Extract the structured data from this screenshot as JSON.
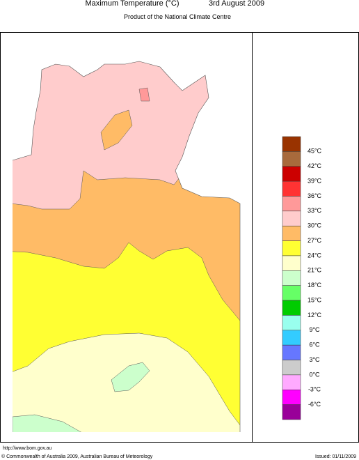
{
  "header": {
    "title": "Maximum Temperature (°C)",
    "date": "3rd August 2009",
    "subtitle": "Product of the National Climate Centre"
  },
  "legend": {
    "colors": [
      "#993300",
      "#a86a3c",
      "#cc0000",
      "#ff3333",
      "#ff9999",
      "#ffcccc",
      "#ffbb66",
      "#ffff33",
      "#ffffcc",
      "#ccffcc",
      "#66ff66",
      "#00cc00",
      "#99ffee",
      "#33ccff",
      "#6677ff",
      "#cccccc",
      "#ffaaff",
      "#ff00ff",
      "#990099"
    ],
    "labels": [
      "45°C",
      "42°C",
      "39°C",
      "36°C",
      "33°C",
      "30°C",
      "27°C",
      "24°C",
      "21°C",
      "18°C",
      "15°C",
      "12°C",
      "9°C",
      "6°C",
      "3°C",
      "0°C",
      "-3°C",
      "-6°C"
    ]
  },
  "footer": {
    "url": "http://www.bom.gov.au",
    "copyright": "© Commonwealth of Australia 2009, Australian Bureau of Meteorology",
    "issued": "Issued: 01/11/2009"
  }
}
